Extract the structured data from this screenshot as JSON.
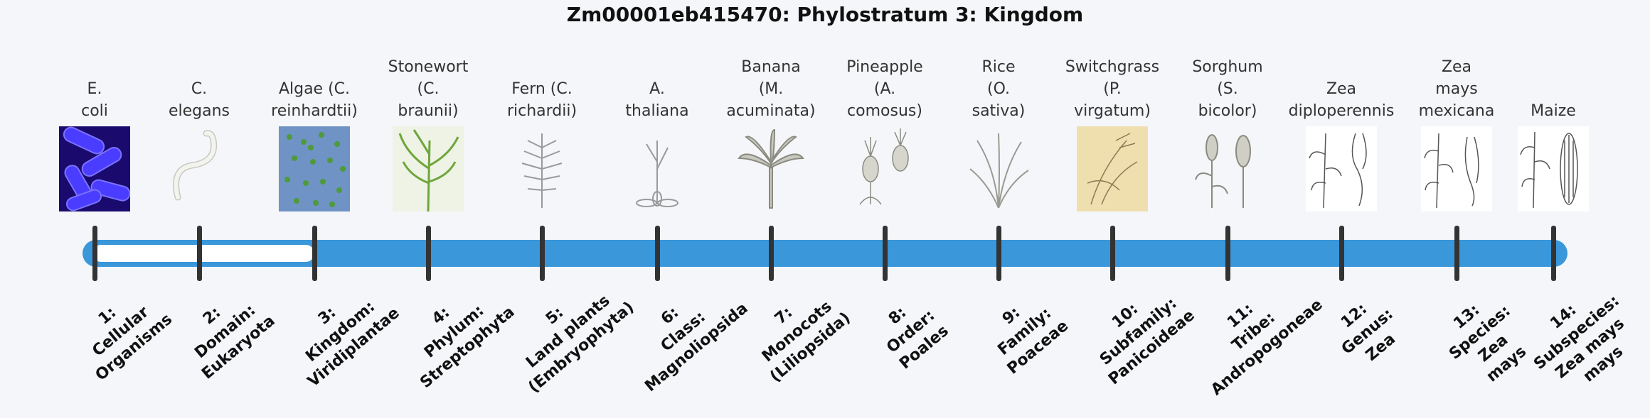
{
  "title": "Zm00001eb415470: Phylostratum 3: Kingdom",
  "current_stratum": 3,
  "colors": {
    "track": "#3a97da",
    "progress": "#ffffff",
    "tick": "#333333",
    "background": "#f4f6f9"
  },
  "strata": [
    {
      "organism": [
        "E.",
        "coli"
      ],
      "level": [
        "1:",
        "Cellular",
        "Organisms"
      ],
      "image": "ecoli-image"
    },
    {
      "organism": [
        "C.",
        "elegans"
      ],
      "level": [
        "2:",
        "Domain:",
        "Eukaryota"
      ],
      "image": "worm-image"
    },
    {
      "organism": [
        "Algae (C.",
        "reinhardtii)"
      ],
      "level": [
        "3:",
        "Kingdom:",
        "Viridiplantae"
      ],
      "image": "algae-image"
    },
    {
      "organism": [
        "Stonewort",
        "(C.",
        "braunii)"
      ],
      "level": [
        "4:",
        "Phylum:",
        "Streptophyta"
      ],
      "image": "stonewort-image"
    },
    {
      "organism": [
        "Fern (C.",
        "richardii)"
      ],
      "level": [
        "5:",
        "Land plants",
        "(Embryophyta)"
      ],
      "image": "fern-image"
    },
    {
      "organism": [
        "A.",
        "thaliana"
      ],
      "level": [
        "6:",
        "Class:",
        "Magnoliopsida"
      ],
      "image": "arabidopsis-image"
    },
    {
      "organism": [
        "Banana",
        "(M.",
        "acuminata)"
      ],
      "level": [
        "7:",
        "Monocots",
        "(Liliopsida)"
      ],
      "image": "banana-image"
    },
    {
      "organism": [
        "Pineapple",
        "(A.",
        "comosus)"
      ],
      "level": [
        "8:",
        "Order:",
        "Poales"
      ],
      "image": "pineapple-image"
    },
    {
      "organism": [
        "Rice",
        "(O.",
        "sativa)"
      ],
      "level": [
        "9:",
        "Family:",
        "Poaceae"
      ],
      "image": "rice-image"
    },
    {
      "organism": [
        "Switchgrass",
        "(P.",
        "virgatum)"
      ],
      "level": [
        "10:",
        "Subfamily:",
        "Panicoideae"
      ],
      "image": "switchgrass-image"
    },
    {
      "organism": [
        "Sorghum",
        "(S.",
        "bicolor)"
      ],
      "level": [
        "11:",
        "Tribe:",
        "Andropogoneae"
      ],
      "image": "sorghum-image"
    },
    {
      "organism": [
        "Zea",
        "diploperennis"
      ],
      "level": [
        "12:",
        "Genus:",
        "Zea"
      ],
      "image": "zea-diploperennis-image"
    },
    {
      "organism": [
        "Zea",
        "mays",
        "mexicana"
      ],
      "level": [
        "13:",
        "Species:",
        "Zea",
        "mays"
      ],
      "image": "zea-mexicana-image"
    },
    {
      "organism": [
        "Maize"
      ],
      "level": [
        "14:",
        "Subspecies:",
        "Zea mays",
        "mays"
      ],
      "image": "maize-image"
    }
  ]
}
